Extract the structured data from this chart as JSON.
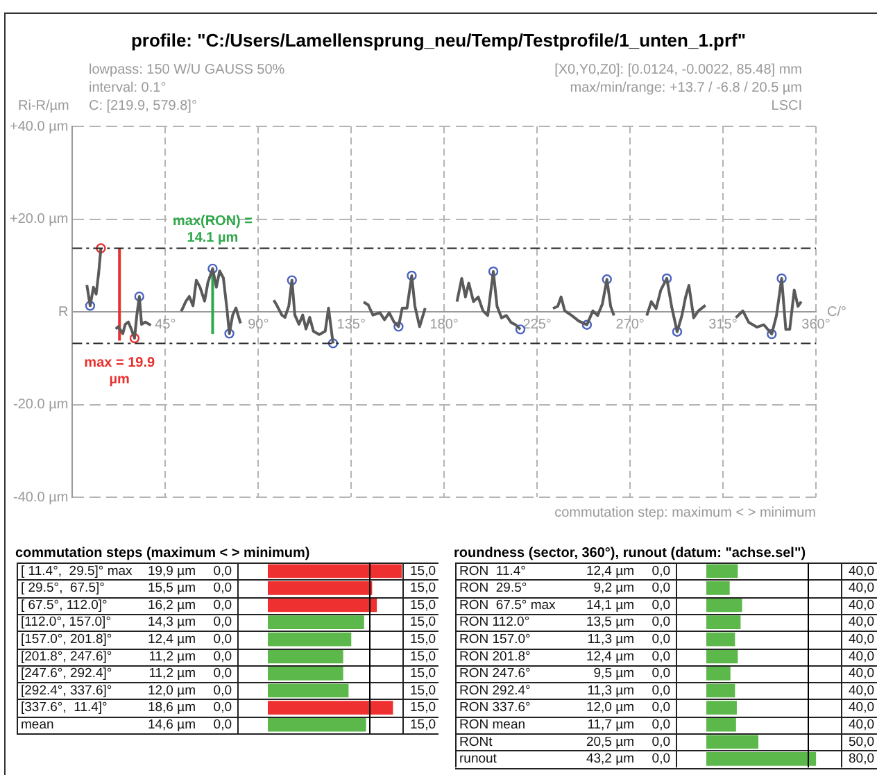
{
  "chart_data": [
    {
      "type": "line",
      "title": "profile: \"C:/Users/Lamellensprung_neu/Temp/Testprofile/1_unten_1.prf\"",
      "xlabel": "C/°",
      "ylabel": "Ri-R/µm",
      "xlim": [
        0,
        360
      ],
      "xticks": [
        {
          "value": 45,
          "label": "45°"
        },
        {
          "value": 90,
          "label": "90°"
        },
        {
          "value": 135,
          "label": "135°"
        },
        {
          "value": 180,
          "label": "180°"
        },
        {
          "value": 225,
          "label": "225°"
        },
        {
          "value": 270,
          "label": "270°"
        },
        {
          "value": 315,
          "label": "315°"
        },
        {
          "value": 360,
          "label": "360°"
        }
      ],
      "ylim": [
        -40,
        40
      ],
      "yticks": [
        {
          "value": 40,
          "label": "+40.0 µm"
        },
        {
          "value": 20,
          "label": "+20.0 µm"
        },
        {
          "value": 0,
          "label": "R"
        },
        {
          "value": -20,
          "label": "-20.0 µm"
        },
        {
          "value": -40,
          "label": "-40.0 µm"
        }
      ],
      "grid": true,
      "legend": false,
      "ref_lines": [
        {
          "axis": "y",
          "value": 13.7,
          "color": "#222222",
          "line_style": "dashed"
        },
        {
          "axis": "y",
          "value": -6.8,
          "color": "#222222",
          "line_style": "dashed"
        }
      ],
      "annotations": [
        "lowpass: 150 W/U GAUSS 50%",
        "interval: 0.1°",
        "C: [219.9, 579.8]°",
        "[X0,Y0,Z0]: [0.0124, -0.0022, 85.48] mm",
        "max/min/range: +13.7 / -6.8 / 20.5 µm",
        "LSCI",
        "commutation step: maximum < > minimum",
        {
          "text": "max = 19.9 µm",
          "x": 22.8,
          "y": -6.2
        },
        {
          "text": "max(RON) = 14.1 µm",
          "x": 67.9,
          "y": 9.3
        }
      ],
      "series": [
        {
          "type": "line",
          "color": "#5a5a5a",
          "marker": "none",
          "x": [
            7.0,
            8.6,
            10.2,
            11.5,
            12.7,
            13.8,
            17,
            21.0,
            22.2,
            24.4,
            25.6,
            27.1,
            28.5,
            30.1,
            31.2,
            32.4,
            33.5,
            35.3,
            38.0,
            45,
            52.7,
            55.0,
            56.6,
            58.4,
            60.0,
            61.8,
            64.0,
            65.6,
            67.9,
            69.7,
            71.3,
            73.1,
            74.9,
            76.0,
            77.6,
            79.2,
            81.4,
            90,
            97.5,
            99.1,
            101.4,
            102.9,
            104.8,
            106.3,
            107.7,
            109.7,
            111.5,
            113.1,
            114.9,
            116.7,
            119.5,
            122.4,
            124.0,
            126.2,
            134,
            141.0,
            143.2,
            145.5,
            148.9,
            151.1,
            153.4,
            155.7,
            157.9,
            159.7,
            162.0,
            164.3,
            165.8,
            168.1,
            170.8,
            178,
            186.2,
            188.5,
            190.3,
            191.9,
            194.2,
            196.5,
            198.8,
            201.1,
            203.8,
            205.6,
            207.8,
            210.1,
            212.4,
            214.6,
            216.9,
            225,
            232.7,
            235.0,
            236.6,
            238.4,
            241.8,
            245.2,
            249.1,
            252.0,
            254.3,
            256.6,
            258.8,
            260.6,
            262.2,
            270,
            278.1,
            280.3,
            282.6,
            284.9,
            287.8,
            290.1,
            292.8,
            295.1,
            296.9,
            298.5,
            300.8,
            303.1,
            306.5,
            314,
            321.2,
            324.6,
            327.5,
            331.4,
            334.8,
            338.6,
            340.9,
            343.4,
            345.4,
            347.3,
            349.5,
            351.3,
            352.9
          ],
          "values": [
            5.8,
            1.3,
            5.3,
            3.8,
            8.3,
            13.7,
            null,
            -3.7,
            -3.2,
            -4.7,
            -2.7,
            -2.2,
            -3.7,
            -5.7,
            -0.7,
            3.3,
            -2.7,
            -2.2,
            -2.9,
            null,
            0.1,
            2.3,
            3.3,
            1.3,
            6.8,
            5.3,
            2.3,
            6.3,
            9.3,
            5.3,
            8.8,
            7.3,
            0.3,
            -4.7,
            -0.7,
            0.8,
            -2.5,
            null,
            2.5,
            1.3,
            -0.7,
            -1.2,
            1.3,
            6.8,
            -0.7,
            -2.7,
            -0.7,
            -3.7,
            -1.2,
            -4.2,
            -4.9,
            -4.2,
            0.8,
            -6.8,
            null,
            2.1,
            1.5,
            -0.7,
            -0.2,
            -1.7,
            -0.2,
            -2.2,
            -3.2,
            0.8,
            0.8,
            7.8,
            1.3,
            -3.2,
            0.8,
            null,
            2.2,
            7.2,
            3.2,
            6.2,
            2.2,
            3.2,
            0.2,
            -0.8,
            8.7,
            1.2,
            -1.3,
            -0.8,
            -2.3,
            -2.8,
            -3.8,
            null,
            0.7,
            1.2,
            3.2,
            0.2,
            -0.8,
            -2.0,
            -2.8,
            0.2,
            -0.8,
            1.7,
            7.0,
            1.2,
            -0.8,
            null,
            -0.8,
            2.2,
            0.7,
            4.7,
            7.2,
            1.2,
            -4.3,
            -0.8,
            3.2,
            5.7,
            -1.3,
            0.2,
            1.4,
            null,
            -1.3,
            0.2,
            -2.3,
            -3.3,
            -2.8,
            -4.8,
            -0.8,
            7.2,
            -3.8,
            -3.8,
            4.7,
            1.2,
            2.2
          ]
        },
        {
          "type": "scatter",
          "marker": "circle",
          "color": "#4a63c0",
          "colors": [
            "#4a63c0",
            "#e8312f",
            "#e8312f",
            "#4a63c0",
            "#4a63c0",
            "#4a63c0",
            "#4a63c0",
            "#4a63c0",
            "#4a63c0",
            "#4a63c0",
            "#4a63c0",
            "#4a63c0",
            "#4a63c0",
            "#4a63c0",
            "#4a63c0",
            "#4a63c0",
            "#4a63c0",
            "#4a63c0"
          ],
          "x": [
            8.6,
            13.8,
            30.1,
            32.4,
            67.9,
            76.0,
            106.3,
            126.2,
            157.9,
            164.3,
            203.8,
            216.9,
            249.1,
            258.8,
            287.8,
            292.8,
            338.6,
            343.4
          ],
          "values": [
            1.3,
            13.7,
            -5.7,
            3.3,
            9.3,
            -4.7,
            6.8,
            -6.8,
            -3.2,
            7.8,
            8.7,
            -3.8,
            -2.8,
            7.0,
            7.2,
            -4.3,
            -4.8,
            7.2
          ]
        },
        {
          "type": "line",
          "marker": "none",
          "color": "#e8312f",
          "x": [
            22.8,
            22.8
          ],
          "values": [
            -6.2,
            13.7
          ]
        },
        {
          "type": "line",
          "marker": "none",
          "color": "#2ea84a",
          "x": [
            67.9,
            67.9
          ],
          "values": [
            -4.8,
            9.3
          ]
        }
      ]
    },
    {
      "type": "bar",
      "orientation": "horizontal",
      "title": "commutation steps (maximum < > minimum)",
      "categories": [
        "[ 11.4°,  29.5]° max",
        "[ 29.5°,  67.5]°",
        "[ 67.5°, 112.0]°",
        "[112.0°, 157.0]°",
        "[157.0°, 201.8]°",
        "[201.8°, 247.6]°",
        "[247.6°, 292.4]°",
        "[292.4°, 337.6]°",
        "[337.6°,  11.4]°",
        "mean"
      ],
      "values": [
        19.9,
        15.5,
        16.2,
        14.3,
        12.4,
        11.2,
        11.2,
        12.0,
        18.6,
        14.6
      ],
      "colors": [
        "#ee3030",
        "#ee3030",
        "#ee3030",
        "#5cb84a",
        "#5cb84a",
        "#5cb84a",
        "#5cb84a",
        "#5cb84a",
        "#ee3030",
        "#5cb84a"
      ],
      "value_labels": [
        "19,9 µm",
        "15,5 µm",
        "16,2 µm",
        "14,3 µm",
        "12,4 µm",
        "11,2 µm",
        "11,2 µm",
        "12,0 µm",
        "18,6 µm",
        "14,6 µm"
      ],
      "xlim": [
        0,
        20
      ],
      "ref_lines": [
        {
          "axis": "x",
          "value": 15,
          "color": "#000000"
        }
      ],
      "annotations": [
        "0,0",
        "15,0",
        "0,0",
        "15,0",
        "0,0",
        "15,0",
        "0,0",
        "15,0",
        "0,0",
        "15,0",
        "0,0",
        "15,0",
        "0,0",
        "15,0",
        "0,0",
        "15,0",
        "0,0",
        "15,0",
        "0,0",
        "15,0"
      ]
    },
    {
      "type": "bar",
      "orientation": "horizontal",
      "title": "roundness (sector, 360°), runout (datum: \"achse.sel\")",
      "categories": [
        "RON  11.4°",
        "RON  29.5°",
        "RON  67.5° max",
        "RON 112.0°",
        "RON 157.0°",
        "RON 201.8°",
        "RON 247.6°",
        "RON 292.4°",
        "RON 337.6°",
        "RON mean",
        "RONt",
        "runout"
      ],
      "values": [
        12.4,
        9.2,
        14.1,
        13.5,
        11.3,
        12.4,
        9.5,
        11.3,
        12.0,
        11.7,
        20.5,
        43.2
      ],
      "colors": [
        "#5cb84a",
        "#5cb84a",
        "#5cb84a",
        "#5cb84a",
        "#5cb84a",
        "#5cb84a",
        "#5cb84a",
        "#5cb84a",
        "#5cb84a",
        "#5cb84a",
        "#5cb84a",
        "#5cb84a"
      ],
      "value_labels": [
        "12,4 µm",
        "9,2 µm",
        "14,1 µm",
        "13,5 µm",
        "11,3 µm",
        "12,4 µm",
        "9,5 µm",
        "11,3 µm",
        "12,0 µm",
        "11,7 µm",
        "20,5 µm",
        "43,2 µm"
      ],
      "xlim": [
        0,
        53
      ],
      "ref_lines": [
        {
          "axis": "x",
          "value": 40,
          "color": "#000000"
        }
      ],
      "annotations": [
        "0,0",
        "40,0",
        "0,0",
        "40,0",
        "0,0",
        "40,0",
        "0,0",
        "40,0",
        "0,0",
        "40,0",
        "0,0",
        "40,0",
        "0,0",
        "40,0",
        "0,0",
        "40,0",
        "0,0",
        "40,0",
        "0,0",
        "40,0",
        "0,0",
        "50,0",
        "0,0",
        "80,0"
      ]
    }
  ]
}
